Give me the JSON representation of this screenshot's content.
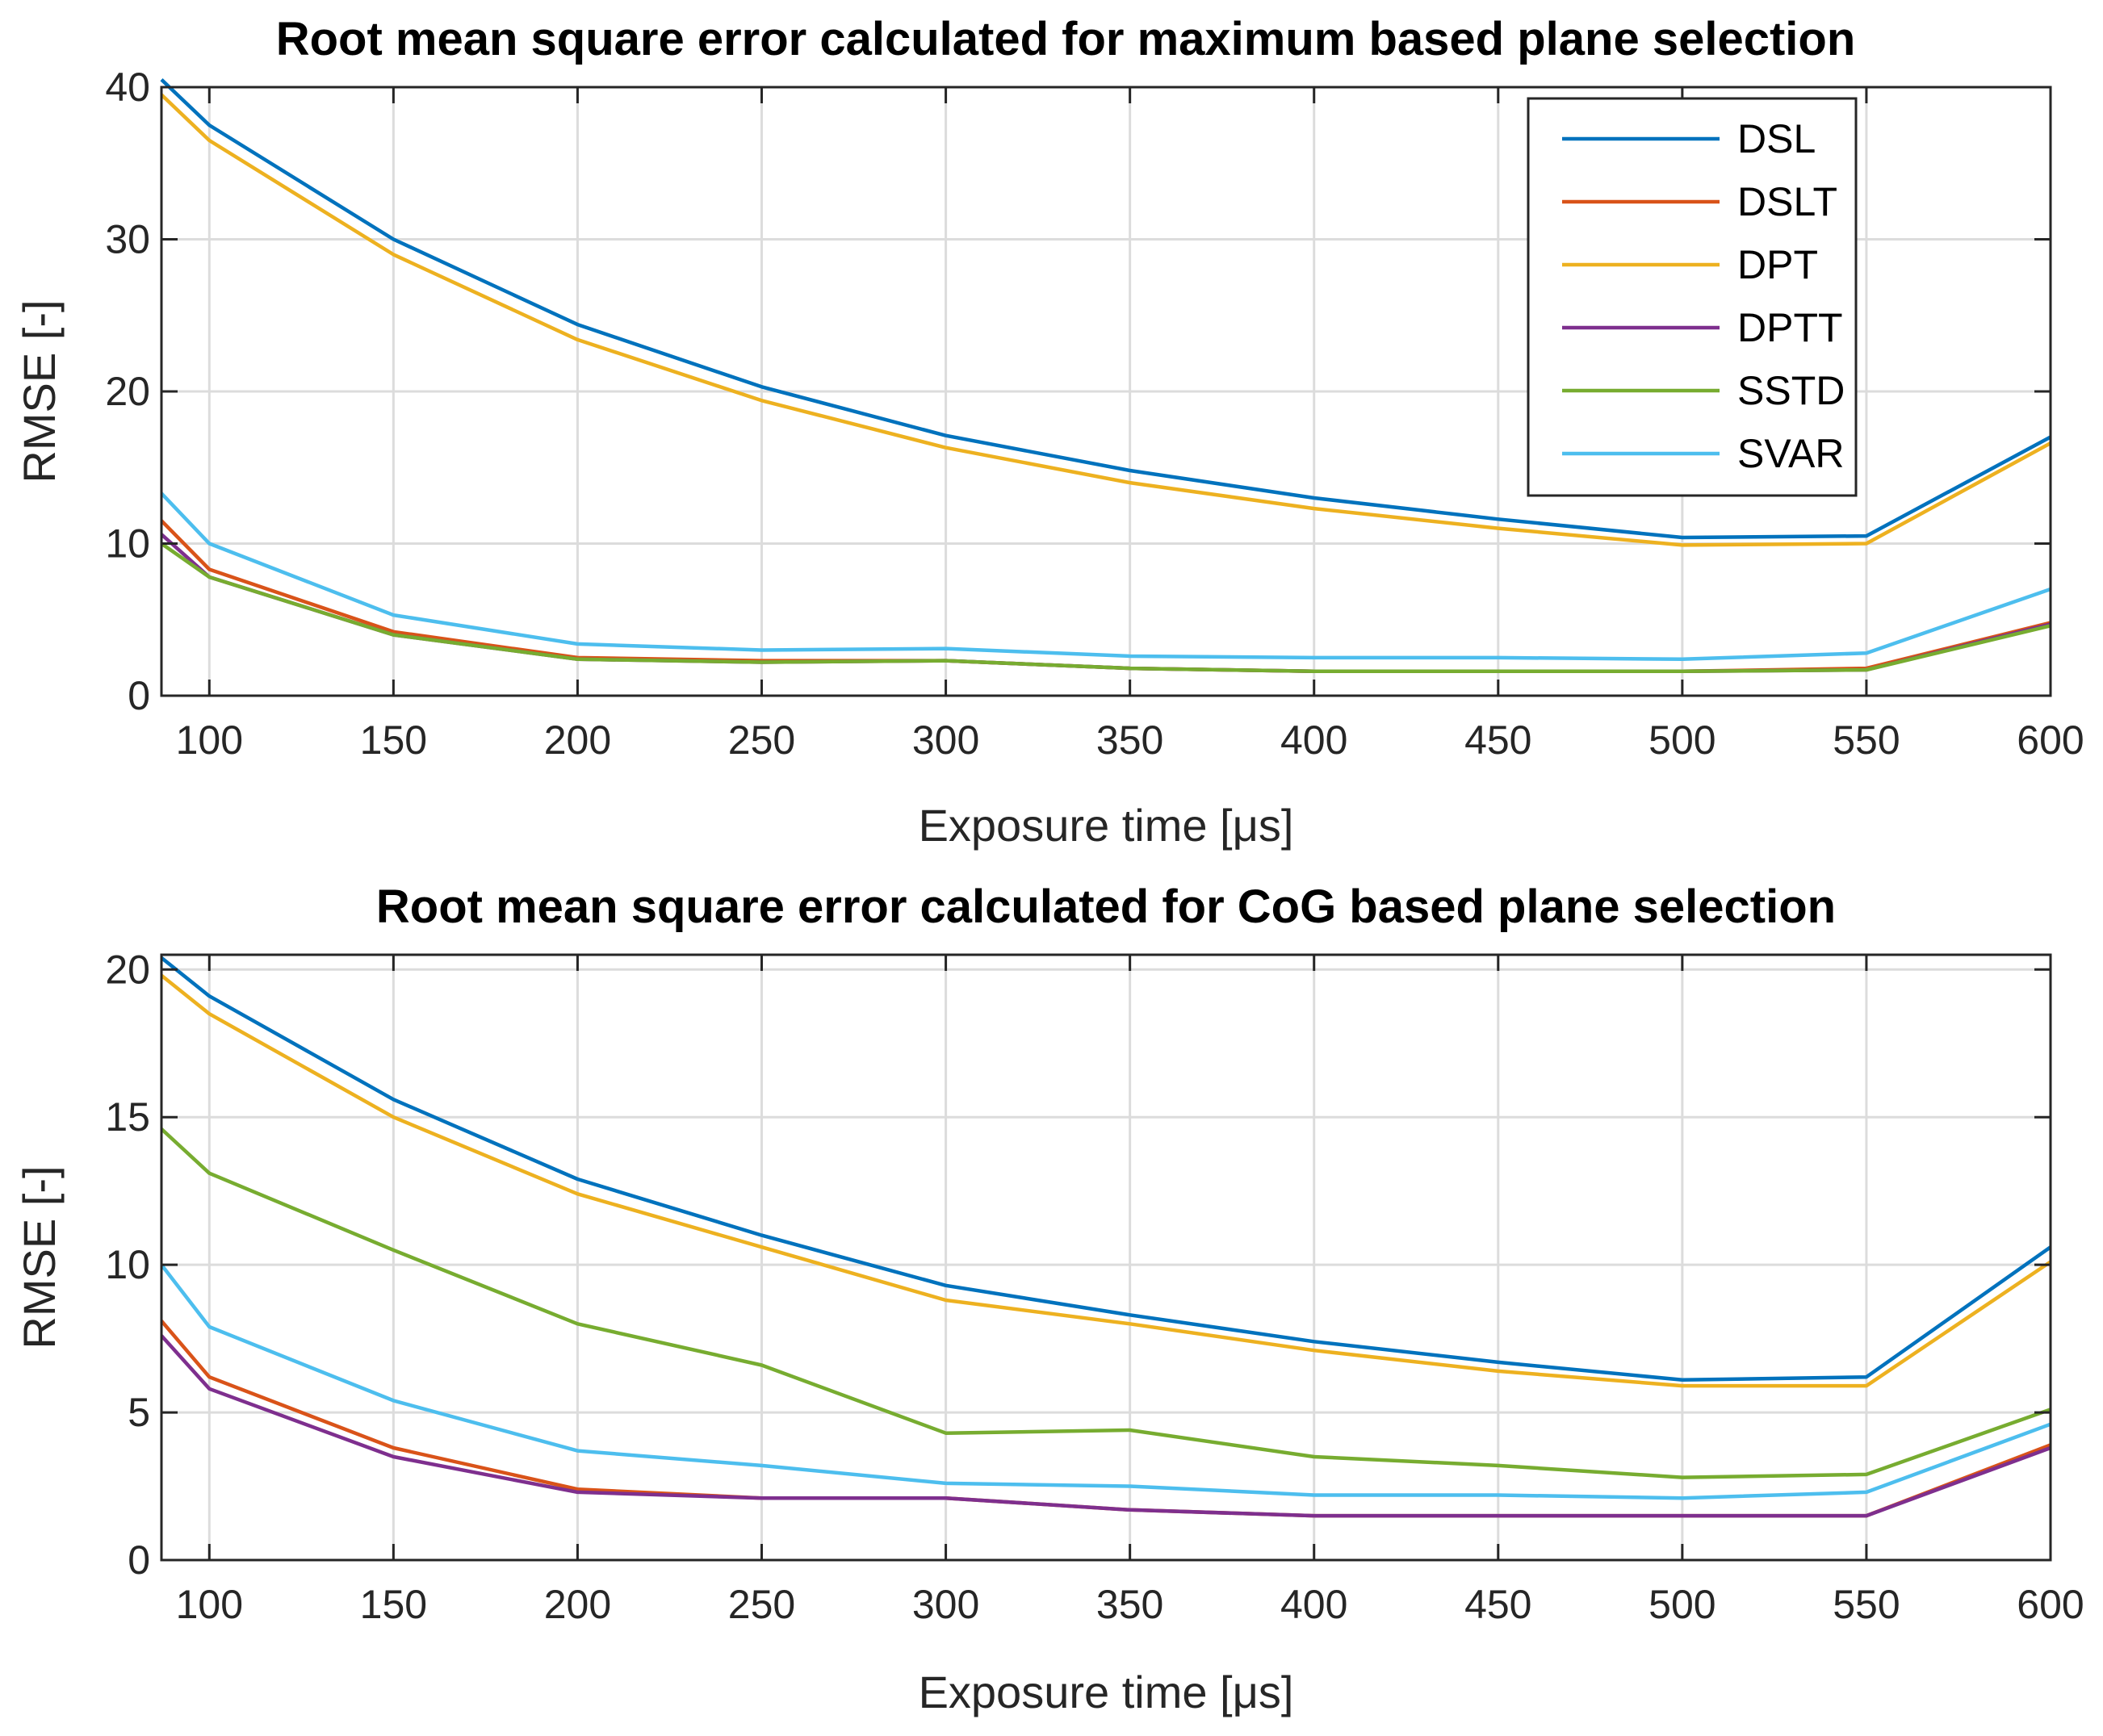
{
  "chart_data": [
    {
      "type": "line",
      "title": "Root mean square error calculated for maximum based plane selection",
      "xlabel": "Exposure time [μs]",
      "ylabel": "RMSE [-]",
      "xlim": [
        87,
        600
      ],
      "ylim": [
        0,
        40
      ],
      "xticks": [
        100,
        150,
        200,
        250,
        300,
        350,
        400,
        450,
        500,
        550,
        600
      ],
      "yticks": [
        0,
        10,
        20,
        30,
        40
      ],
      "grid": true,
      "legend": "top-right",
      "x": [
        87,
        100,
        150,
        200,
        250,
        300,
        350,
        400,
        450,
        500,
        550,
        600
      ],
      "series": [
        {
          "name": "DSL",
          "color": "#0072BD",
          "values": [
            40.5,
            37.5,
            30.0,
            24.4,
            20.3,
            17.1,
            14.8,
            13.0,
            11.6,
            10.4,
            10.5,
            17.0
          ]
        },
        {
          "name": "DSLT",
          "color": "#D95319",
          "values": [
            11.5,
            8.3,
            4.2,
            2.5,
            2.3,
            2.3,
            1.8,
            1.6,
            1.6,
            1.6,
            1.8,
            4.8
          ]
        },
        {
          "name": "DPT",
          "color": "#EDB120",
          "values": [
            39.5,
            36.5,
            29.0,
            23.4,
            19.4,
            16.3,
            14.0,
            12.3,
            11.0,
            9.9,
            10.0,
            16.6
          ]
        },
        {
          "name": "DPTT",
          "color": "#7E2F8E",
          "values": [
            10.6,
            7.8,
            4.0,
            2.4,
            2.2,
            2.3,
            1.8,
            1.6,
            1.6,
            1.6,
            1.7,
            4.7
          ]
        },
        {
          "name": "SSTD",
          "color": "#77AC30",
          "values": [
            10.0,
            7.8,
            4.0,
            2.4,
            2.2,
            2.3,
            1.8,
            1.6,
            1.6,
            1.6,
            1.7,
            4.6
          ]
        },
        {
          "name": "SVAR",
          "color": "#4DBEEE",
          "values": [
            13.3,
            10.0,
            5.3,
            3.4,
            3.0,
            3.1,
            2.6,
            2.5,
            2.5,
            2.4,
            2.8,
            7.0
          ]
        }
      ]
    },
    {
      "type": "line",
      "title": "Root mean square error calculated for CoG based plane selection",
      "xlabel": "Exposure time [μs]",
      "ylabel": "RMSE [-]",
      "xlim": [
        87,
        600
      ],
      "ylim": [
        0,
        20.5
      ],
      "xticks": [
        100,
        150,
        200,
        250,
        300,
        350,
        400,
        450,
        500,
        550,
        600
      ],
      "yticks": [
        0,
        5,
        10,
        15,
        20
      ],
      "grid": true,
      "x": [
        87,
        100,
        150,
        200,
        250,
        300,
        350,
        400,
        450,
        500,
        550,
        600
      ],
      "series": [
        {
          "name": "DSL",
          "color": "#0072BD",
          "values": [
            20.4,
            19.1,
            15.6,
            12.9,
            11.0,
            9.3,
            8.3,
            7.4,
            6.7,
            6.1,
            6.2,
            10.6
          ]
        },
        {
          "name": "DSLT",
          "color": "#D95319",
          "values": [
            8.1,
            6.2,
            3.8,
            2.4,
            2.1,
            2.1,
            1.7,
            1.5,
            1.5,
            1.5,
            1.5,
            3.9
          ]
        },
        {
          "name": "DPT",
          "color": "#EDB120",
          "values": [
            19.8,
            18.5,
            15.0,
            12.4,
            10.6,
            8.8,
            8.0,
            7.1,
            6.4,
            5.9,
            5.9,
            10.1
          ]
        },
        {
          "name": "DPTT",
          "color": "#7E2F8E",
          "values": [
            7.6,
            5.8,
            3.5,
            2.3,
            2.1,
            2.1,
            1.7,
            1.5,
            1.5,
            1.5,
            1.5,
            3.8
          ]
        },
        {
          "name": "SSTD",
          "color": "#77AC30",
          "values": [
            14.6,
            13.1,
            10.5,
            8.0,
            6.6,
            4.3,
            4.4,
            3.5,
            3.2,
            2.8,
            2.9,
            5.1
          ]
        },
        {
          "name": "SVAR",
          "color": "#4DBEEE",
          "values": [
            10.0,
            7.9,
            5.4,
            3.7,
            3.2,
            2.6,
            2.5,
            2.2,
            2.2,
            2.1,
            2.3,
            4.6
          ]
        }
      ]
    }
  ]
}
